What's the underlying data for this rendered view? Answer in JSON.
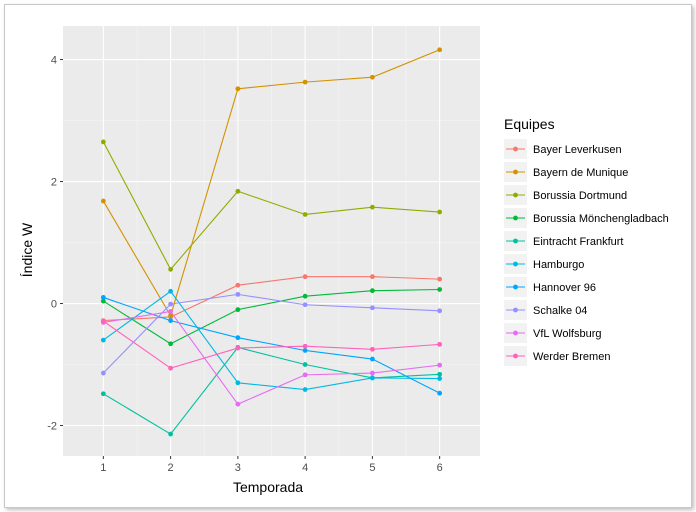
{
  "chart_data": {
    "type": "line",
    "xlabel": "Temporada",
    "ylabel": "Índice W",
    "xlim": [
      0.4,
      6.6
    ],
    "ylim": [
      -2.5,
      4.55
    ],
    "x_ticks": [
      1,
      2,
      3,
      4,
      5,
      6
    ],
    "y_ticks": [
      -2,
      0,
      2,
      4
    ],
    "grid": true,
    "legend_title": "Equipes",
    "legend_position": "right",
    "x": [
      1,
      2,
      3,
      4,
      5,
      6
    ],
    "series": [
      {
        "name": "Bayer Leverkusen",
        "color": "#F8766D",
        "values": [
          -0.28,
          -0.22,
          0.3,
          0.44,
          0.44,
          0.4
        ]
      },
      {
        "name": "Bayern de Munique",
        "color": "#D39200",
        "values": [
          1.68,
          -0.2,
          3.52,
          3.63,
          3.71,
          4.16
        ]
      },
      {
        "name": "Borussia Dortmund",
        "color": "#93AA00",
        "values": [
          2.65,
          0.56,
          1.84,
          1.46,
          1.58,
          1.5
        ]
      },
      {
        "name": "Borussia Mönchengladbach",
        "color": "#00BA38",
        "values": [
          0.04,
          -0.66,
          -0.1,
          0.12,
          0.21,
          0.23
        ]
      },
      {
        "name": "Eintracht Frankfurt",
        "color": "#00C19F",
        "values": [
          -1.48,
          -2.14,
          -0.72,
          -1.0,
          -1.22,
          -1.16
        ]
      },
      {
        "name": "Hamburgo",
        "color": "#00B9E3",
        "values": [
          -0.6,
          0.2,
          -1.3,
          -1.41,
          -1.22,
          -1.23
        ]
      },
      {
        "name": "Hannover 96",
        "color": "#00A5FF",
        "values": [
          0.1,
          -0.28,
          -0.56,
          -0.77,
          -0.91,
          -1.47
        ]
      },
      {
        "name": "Schalke 04",
        "color": "#9590FF",
        "values": [
          -1.14,
          -0.01,
          0.15,
          -0.02,
          -0.07,
          -0.12
        ]
      },
      {
        "name": "VfL Wolfsburg",
        "color": "#E76BF3",
        "values": [
          -0.31,
          -0.13,
          -1.65,
          -1.17,
          -1.14,
          -1.01
        ]
      },
      {
        "name": "Werder Bremen",
        "color": "#FF62BC",
        "values": [
          -0.29,
          -1.06,
          -0.73,
          -0.7,
          -0.75,
          -0.67
        ]
      }
    ]
  }
}
